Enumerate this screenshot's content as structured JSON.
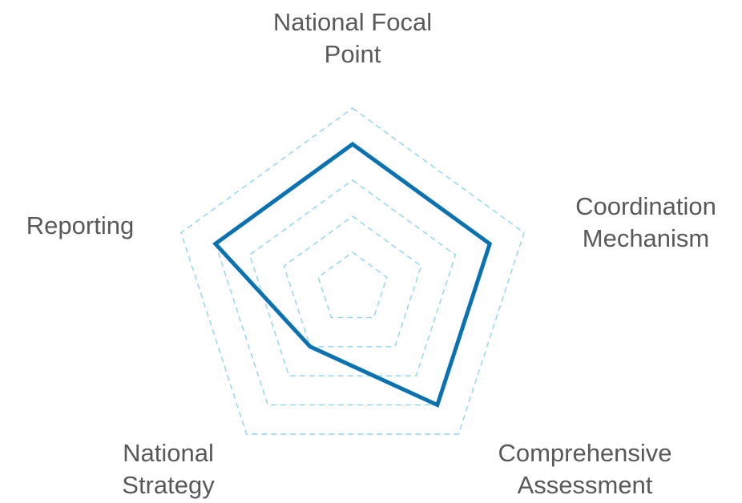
{
  "chart_data": {
    "type": "radar",
    "title": "",
    "categories": [
      [
        "National Focal",
        "Point"
      ],
      [
        "Coordination",
        "Mechanism"
      ],
      [
        "Comprehensive",
        "Assessment"
      ],
      [
        "National",
        "Strategy"
      ],
      [
        "Reporting"
      ]
    ],
    "scale": {
      "min": 0,
      "max": 5,
      "rings": 5
    },
    "grid": true,
    "series": [
      {
        "values": [
          4,
          4,
          4,
          2,
          4
        ]
      }
    ],
    "colors": {
      "series": "#0a72b0",
      "grid": "#8fd3f4",
      "labels": "#595959"
    }
  }
}
